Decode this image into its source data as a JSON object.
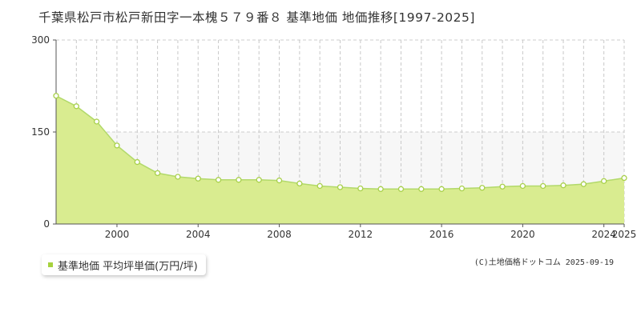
{
  "title": "千葉県松戸市松戸新田字一本槐５７９番８ 基準地価 地価推移[1997-2025]",
  "copyright": "(C)土地価格ドットコム 2025-09-19",
  "colors": {
    "fill": "#d9ec90",
    "line": "#b2d96a",
    "marker_stroke": "#a8d04a",
    "marker_fill": "#ffffff",
    "legend_swatch": "#a6d23e"
  },
  "chart_data": {
    "type": "area",
    "title": "千葉県松戸市松戸新田字一本槐５７９番８ 基準地価 地価推移[1997-2025]",
    "ylim": [
      0,
      300
    ],
    "xlim": [
      1997,
      2025
    ],
    "y_ticks": [
      "0",
      "150",
      "300"
    ],
    "x_ticks": [
      "2000",
      "2004",
      "2008",
      "2012",
      "2016",
      "2020",
      "2024",
      "2025"
    ],
    "grid": true,
    "legend_position": "bottom-left",
    "series": [
      {
        "name": "基準地価 平均坪単価(万円/坪)",
        "x": [
          1997,
          1998,
          1999,
          2000,
          2001,
          2002,
          2003,
          2004,
          2005,
          2006,
          2007,
          2008,
          2009,
          2010,
          2011,
          2012,
          2013,
          2014,
          2015,
          2016,
          2017,
          2018,
          2019,
          2020,
          2021,
          2022,
          2023,
          2024,
          2025
        ],
        "values": [
          209,
          192,
          167,
          128,
          101,
          83,
          77,
          74,
          72,
          72,
          72,
          71,
          66,
          62,
          60,
          58,
          57,
          57,
          57,
          57,
          58,
          59,
          61,
          62,
          62,
          63,
          65,
          70,
          75
        ]
      }
    ]
  }
}
